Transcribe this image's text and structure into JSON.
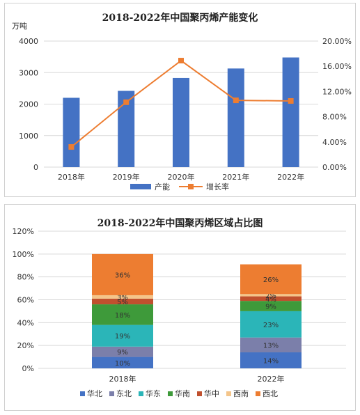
{
  "chart_data": [
    {
      "type": "bar",
      "title": "2018-2022年中国聚丙烯产能变化",
      "unit_left": "万吨",
      "categories": [
        "2018年",
        "2019年",
        "2020年",
        "2021年",
        "2022年"
      ],
      "series": [
        {
          "name": "产能",
          "type": "bar",
          "axis": "left",
          "values": [
            2200,
            2420,
            2830,
            3130,
            3480
          ],
          "color": "#4472C4"
        },
        {
          "name": "增长率",
          "type": "line",
          "axis": "right",
          "values": [
            3.2,
            10.3,
            16.9,
            10.6,
            10.5
          ],
          "color": "#ED7D31"
        }
      ],
      "ylim_left": [
        0,
        4000
      ],
      "yticks_left": [
        "0",
        "1000",
        "2000",
        "3000",
        "4000"
      ],
      "ylim_right": [
        0,
        20
      ],
      "yticks_right": [
        "0.00%",
        "4.00%",
        "8.00%",
        "12.00%",
        "16.00%",
        "20.00%"
      ],
      "legend_position": "bottom",
      "grid": true
    },
    {
      "type": "stacked-bar",
      "title": "2018-2022年中国聚丙烯区域占比图",
      "categories": [
        "2018年",
        "2022年"
      ],
      "yticks": [
        "0%",
        "20%",
        "40%",
        "60%",
        "80%",
        "100%",
        "120%"
      ],
      "ylim": [
        0,
        120
      ],
      "series": [
        {
          "name": "华北",
          "values": [
            10,
            14
          ],
          "labels": [
            "10%",
            "14%"
          ],
          "color": "#4472C4"
        },
        {
          "name": "东北",
          "values": [
            9,
            13
          ],
          "labels": [
            "9%",
            "13%"
          ],
          "color": "#7B7FAA"
        },
        {
          "name": "华东",
          "values": [
            19,
            23
          ],
          "labels": [
            "19%",
            "23%"
          ],
          "color": "#2BB5B8"
        },
        {
          "name": "华南",
          "values": [
            18,
            9
          ],
          "labels": [
            "18%",
            "9%"
          ],
          "color": "#3E9A3A"
        },
        {
          "name": "华中",
          "values": [
            5,
            4
          ],
          "labels": [
            "5%",
            "4%"
          ],
          "color": "#C0502E"
        },
        {
          "name": "西南",
          "values": [
            3,
            2
          ],
          "labels": [
            "3%",
            "2%"
          ],
          "color": "#F4C58A"
        },
        {
          "name": "西北",
          "values": [
            36,
            26
          ],
          "labels": [
            "36%",
            "26%"
          ],
          "color": "#ED7D31"
        }
      ],
      "legend_position": "bottom",
      "grid": true
    }
  ]
}
